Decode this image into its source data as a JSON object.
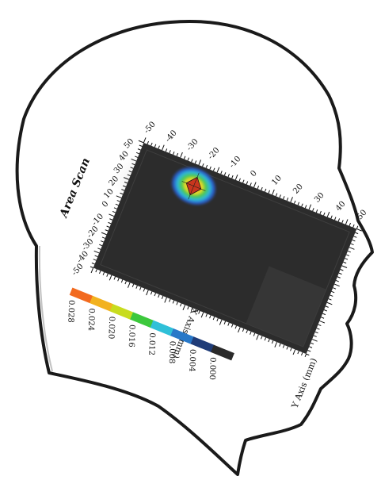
{
  "scan": {
    "title": "Area Scan",
    "x_axis_label": "X Axis (mm)",
    "y_axis_label": "Y Axis (mm)",
    "x_ticks": [
      "-50",
      "-40",
      "-30",
      "-20",
      "-10",
      "0",
      "10",
      "20",
      "30",
      "40",
      "50"
    ],
    "y_ticks": [
      "50",
      "40",
      "30",
      "20",
      "10",
      "0",
      "-10",
      "-20",
      "-30",
      "-40",
      "-50"
    ]
  },
  "colorbar": {
    "labels": [
      "0.028",
      "0.024",
      "0.020",
      "0.016",
      "0.012",
      "0.008",
      "0.004",
      "0.000"
    ],
    "colors": [
      "#f26a1f",
      "#f2b21f",
      "#c8dc1e",
      "#3cc83c",
      "#2fc0d8",
      "#2878c8",
      "#1f3c78",
      "#2a2a2a"
    ]
  },
  "colors": {
    "head_outline": "#111111",
    "scan_background": "#2c2c2c",
    "hotspot_peak": "#e5482a",
    "hotspot_mid": "#f0dc28",
    "hotspot_outer": "#3a78d8"
  }
}
